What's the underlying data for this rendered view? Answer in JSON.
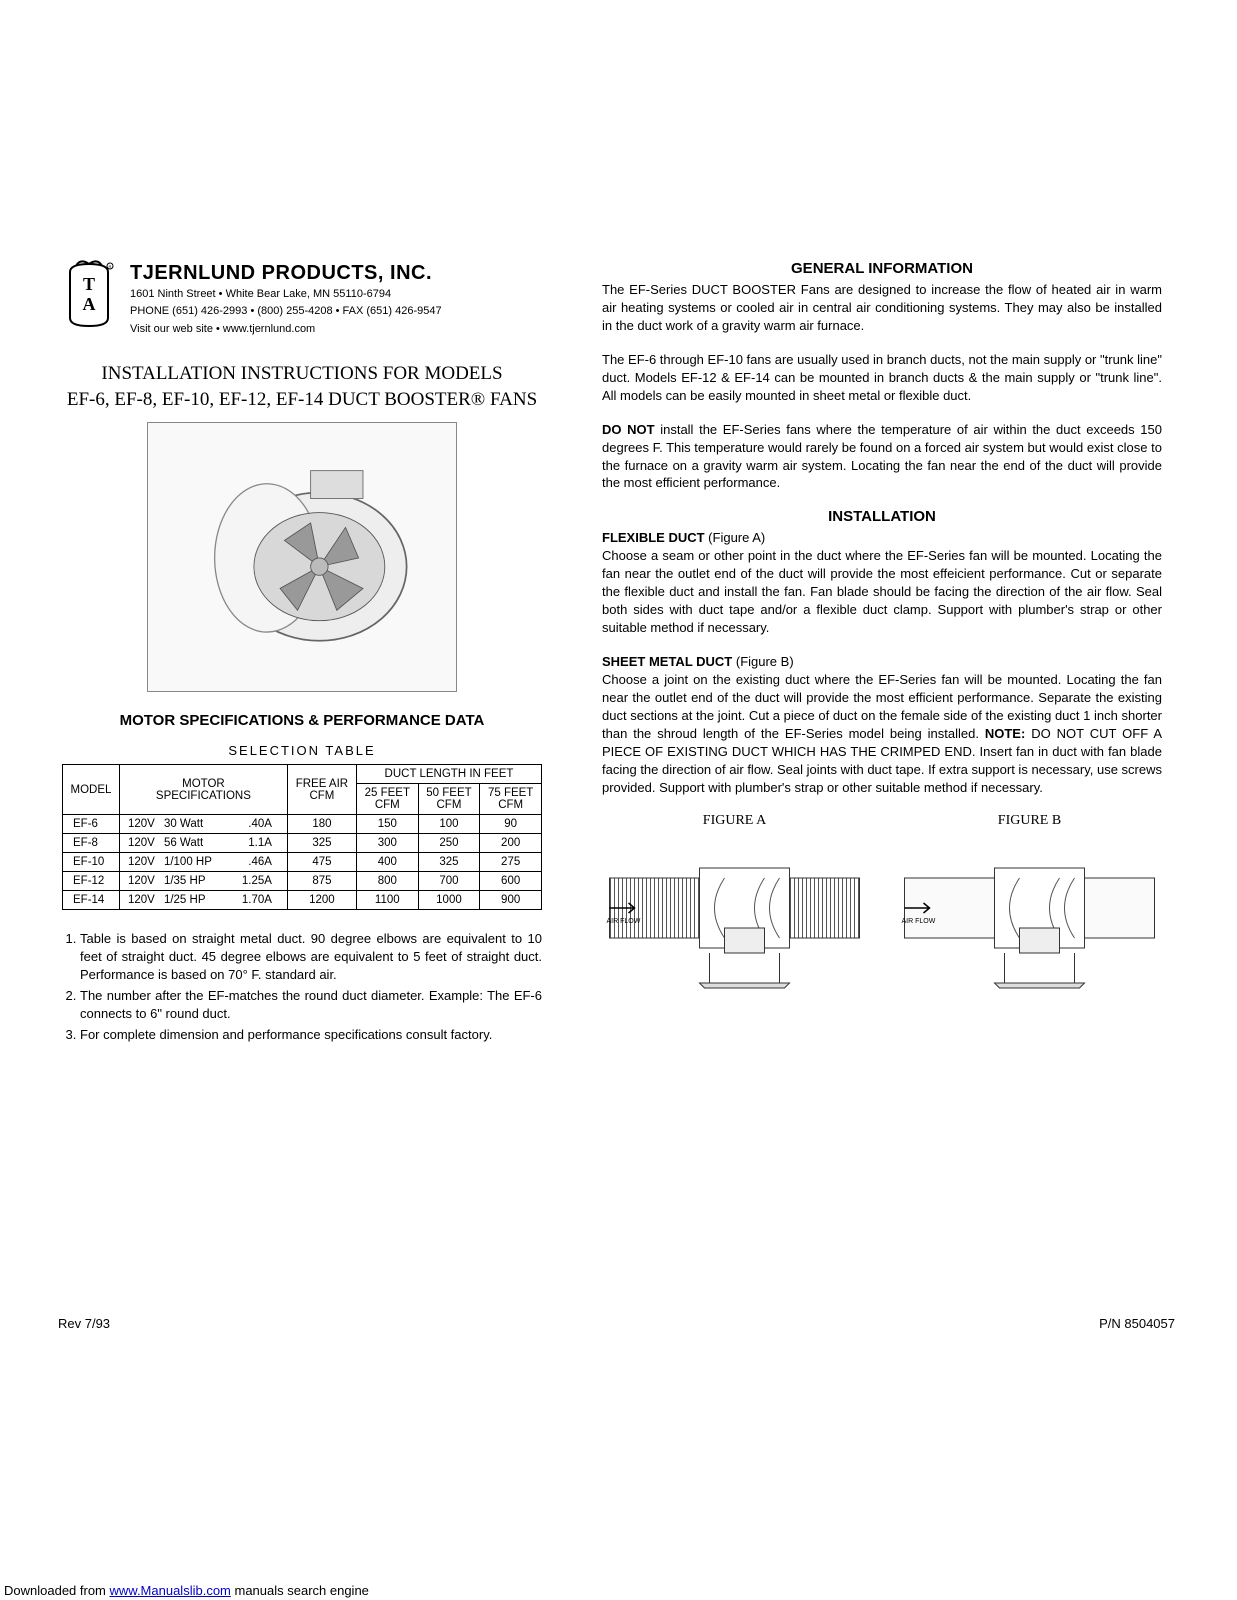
{
  "company": {
    "name": "TJERNLUND PRODUCTS, INC.",
    "address": "1601 Ninth Street • White Bear Lake, MN 55110-6794",
    "phone": "PHONE (651) 426-2993 • (800) 255-4208 • FAX (651) 426-9547",
    "web": "Visit our web site • www.tjernlund.com"
  },
  "title_line1": "INSTALLATION INSTRUCTIONS FOR MODELS",
  "title_line2": "EF-6, EF-8, EF-10, EF-12, EF-14 DUCT BOOSTER® FANS",
  "spec_heading": "MOTOR SPECIFICATIONS & PERFORMANCE DATA",
  "table_title": "SELECTION  TABLE",
  "table": {
    "head_model": "MODEL",
    "head_specs": "MOTOR\nSPECIFICATIONS",
    "head_freeair": "FREE AIR\nCFM",
    "head_ductlen": "DUCT  LENGTH  IN  FEET",
    "head_25": "25 FEET\nCFM",
    "head_50": "50 FEET\nCFM",
    "head_75": "75 FEET\nCFM",
    "rows": [
      {
        "model": "EF-6",
        "volt": "120V",
        "power": "30  Watt",
        "amps": ".40A",
        "free": "180",
        "c25": "150",
        "c50": "100",
        "c75": "90"
      },
      {
        "model": "EF-8",
        "volt": "120V",
        "power": "56  Watt",
        "amps": "1.1A",
        "free": "325",
        "c25": "300",
        "c50": "250",
        "c75": "200"
      },
      {
        "model": "EF-10",
        "volt": "120V",
        "power": "1/100 HP",
        "amps": ".46A",
        "free": "475",
        "c25": "400",
        "c50": "325",
        "c75": "275"
      },
      {
        "model": "EF-12",
        "volt": "120V",
        "power": "1/35  HP",
        "amps": "1.25A",
        "free": "875",
        "c25": "800",
        "c50": "700",
        "c75": "600"
      },
      {
        "model": "EF-14",
        "volt": "120V",
        "power": "1/25  HP",
        "amps": "1.70A",
        "free": "1200",
        "c25": "1100",
        "c50": "1000",
        "c75": "900"
      }
    ]
  },
  "notes": [
    "Table is based on straight metal duct. 90 degree elbows are equivalent to 10 feet of straight duct. 45 degree elbows are equivalent to 5 feet of straight duct.  Performance is based on 70° F. standard air.",
    "The number after the EF-matches the round duct diameter.  Example: The EF-6 connects to 6\" round duct.",
    "For complete dimension and performance specifications consult factory."
  ],
  "rev": "Rev  7/93",
  "pn": "P/N  8504057",
  "gen_heading": "GENERAL INFORMATION",
  "gen_p1": "The EF-Series DUCT BOOSTER  Fans are designed to increase the flow of heated air in warm air heating systems or cooled air in central air conditioning systems.  They may also be installed in the duct work of a gravity warm air furnace.",
  "gen_p2": "The EF-6 through EF-10 fans are usually used in branch ducts, not the main supply or \"trunk line\" duct.  Models EF-12 & EF-14 can be mounted in branch ducts & the main supply or \"trunk line\".  All models can be easily mounted in sheet metal or flexible duct.",
  "gen_p3_prefix": "DO NOT",
  "gen_p3": " install the EF-Series fans where the  temperature of air within the duct exceeds 150 degrees F.  This temperature would rarely be found on a forced air system but would exist close to the furnace on a gravity warm air system.  Locating the fan near the end of the duct will provide the most efficient performance.",
  "install_heading": "INSTALLATION",
  "flex_sub": "FLEXIBLE DUCT",
  "flex_fig": " (Figure A)",
  "flex_p": "Choose a seam or other point in the duct where the EF-Series fan will be mounted.  Locating the fan near the outlet end of the duct will provide the most effeicient performance.  Cut or separate the flexible duct and install the fan.  Fan blade should be facing the direction of the air flow.  Seal both sides with duct tape and/or a flexible duct clamp.  Support with plumber's strap or other suitable method if necessary.",
  "sheet_sub": "SHEET METAL DUCT",
  "sheet_fig": " (Figure B)",
  "sheet_p_a": "Choose a joint on the existing duct where the EF-Series fan will be mounted. Locating the fan near the outlet end of the duct will provide the most efficient performance.  Separate the existing duct sections at the joint.  Cut a piece of duct on the female side of the existing duct 1 inch shorter than the shroud length of the EF-Series model being installed.  ",
  "sheet_note": "NOTE:",
  "sheet_p_b": " DO NOT CUT OFF A PIECE OF EXISTING DUCT WHICH HAS THE CRIMPED END.  Insert fan in duct with fan blade facing the direction of air flow.  Seal joints with duct tape.  If extra support is necessary, use screws provided.  Support with plumber's strap or other suitable method if necessary.",
  "figA": "FIGURE A",
  "figB": "FIGURE B",
  "airflow": "AIR  FLOW",
  "download_prefix": "Downloaded from ",
  "download_link": "www.Manualslib.com",
  "download_suffix": " manuals search engine"
}
